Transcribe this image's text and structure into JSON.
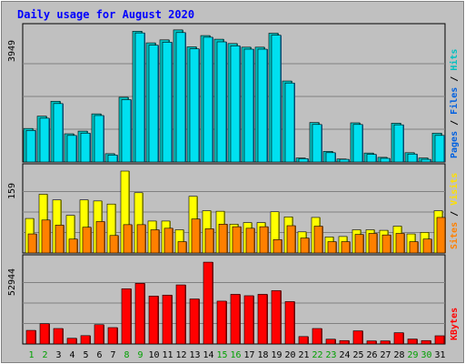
{
  "chart_data": {
    "type": "bar",
    "title": "Daily usage for August 2020",
    "categories": [
      "1",
      "2",
      "3",
      "4",
      "5",
      "6",
      "7",
      "8",
      "9",
      "10",
      "11",
      "12",
      "13",
      "14",
      "15",
      "16",
      "17",
      "18",
      "19",
      "20",
      "21",
      "22",
      "23",
      "24",
      "25",
      "26",
      "27",
      "28",
      "29",
      "30",
      "31"
    ],
    "weekend_days": [
      "1",
      "2",
      "8",
      "9",
      "15",
      "16",
      "22",
      "23",
      "29",
      "30"
    ],
    "panels": [
      {
        "name": "hits_files_pages",
        "scale_label": "3949",
        "max": 3949,
        "axis_labels": [
          "Pages",
          "Files",
          "Hits"
        ],
        "series": [
          {
            "name": "Hits",
            "values": [
              1010,
              1380,
              1830,
              850,
              930,
              1450,
              250,
              1950,
              3940,
              3590,
              3680,
              3980,
              3470,
              3810,
              3700,
              3570,
              3460,
              3460,
              3880,
              2440,
              120,
              1190,
              320,
              90,
              1180,
              270,
              140,
              1170,
              280,
              120,
              870
            ],
            "color": "#00C0C0"
          },
          {
            "name": "Files",
            "values": [
              950,
              1320,
              1760,
              800,
              870,
              1400,
              210,
              1880,
              3890,
              3520,
              3610,
              3900,
              3410,
              3760,
              3620,
              3500,
              3400,
              3400,
              3820,
              2380,
              100,
              1130,
              280,
              80,
              1130,
              230,
              110,
              1120,
              240,
              80,
              800
            ],
            "color": "#00E0F0"
          },
          {
            "name": "Pages",
            "values": [
              0,
              0,
              0,
              0,
              0,
              0,
              0,
              0,
              0,
              0,
              0,
              0,
              0,
              0,
              0,
              0,
              0,
              0,
              0,
              0,
              0,
              0,
              0,
              0,
              0,
              0,
              0,
              0,
              0,
              0,
              0
            ],
            "color": "#2040E0"
          }
        ]
      },
      {
        "name": "visits_sites",
        "scale_label": "159",
        "max": 159,
        "axis_labels": [
          "Sites",
          "Visits"
        ],
        "series": [
          {
            "name": "Visits",
            "values": [
              67,
              114,
              103,
              73,
              103,
              101,
              95,
              159,
              117,
              62,
              62,
              45,
              110,
              82,
              81,
              56,
              59,
              59,
              80,
              70,
              41,
              69,
              31,
              32,
              45,
              45,
              44,
              52,
              37,
              40,
              82
            ],
            "color": "#FFFF00"
          },
          {
            "name": "Sites",
            "values": [
              37,
              64,
              54,
              27,
              50,
              61,
              34,
              55,
              55,
              45,
              48,
              22,
              66,
              47,
              56,
              51,
              48,
              51,
              26,
              53,
              29,
              52,
              22,
              22,
              36,
              38,
              35,
              38,
              22,
              27,
              69
            ],
            "color": "#FF8000"
          }
        ]
      },
      {
        "name": "kbytes",
        "scale_label": "52944",
        "max": 52944,
        "axis_labels": [
          "KBytes"
        ],
        "series": [
          {
            "name": "KBytes",
            "values": [
              8800,
              13100,
              10000,
              3700,
              5400,
              12500,
              10600,
              35700,
              39200,
              31000,
              31600,
              38200,
              29100,
              52900,
              27700,
              32100,
              31200,
              32100,
              34500,
              27400,
              4800,
              10000,
              3100,
              2200,
              8500,
              2000,
              2000,
              7300,
              3200,
              2200,
              5300
            ],
            "color": "#FF0000"
          }
        ]
      }
    ]
  }
}
